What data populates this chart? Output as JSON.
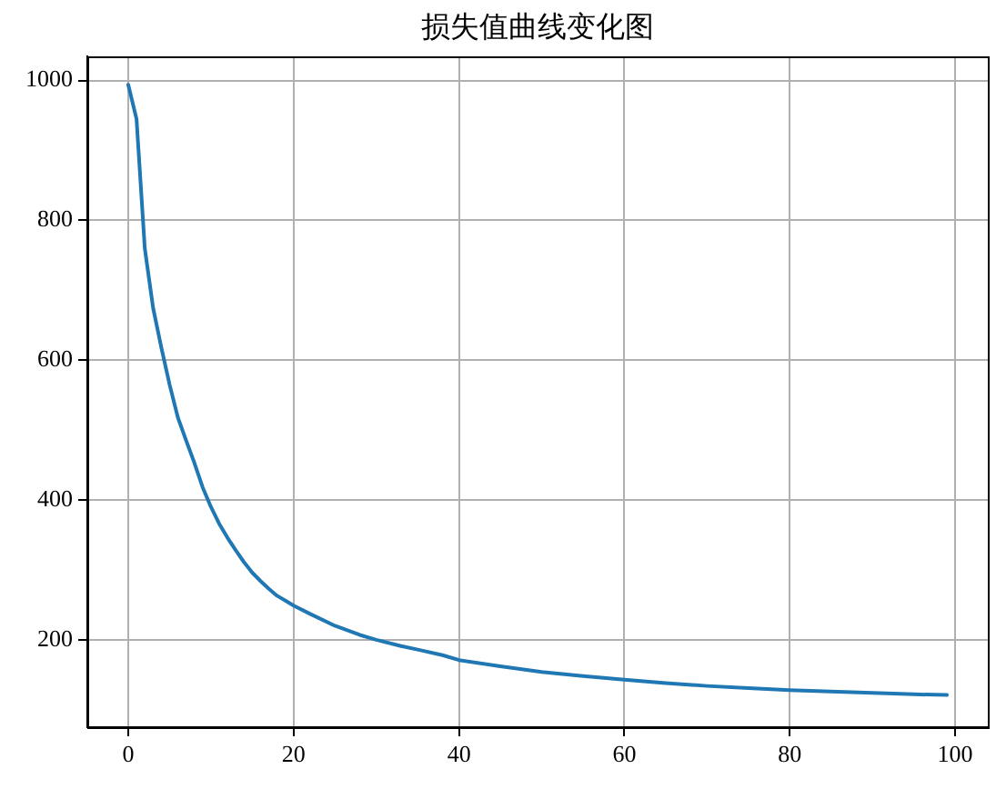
{
  "chart_data": {
    "type": "line",
    "title": "损失值曲线变化图",
    "x": [
      0,
      1,
      2,
      3,
      4,
      5,
      6,
      7,
      8,
      9,
      10,
      11,
      12,
      13,
      14,
      15,
      16,
      17,
      18,
      19,
      20,
      22,
      25,
      28,
      30,
      33,
      35,
      38,
      40,
      45,
      50,
      55,
      60,
      65,
      70,
      75,
      80,
      85,
      90,
      95,
      99
    ],
    "series": [
      {
        "color": "#1f77b4",
        "values": [
          994,
          945,
          760,
          675,
          618,
          565,
          518,
          485,
          453,
          418,
          390,
          366,
          346,
          328,
          311,
          296,
          284,
          273,
          263,
          256,
          249,
          237,
          220,
          207,
          200,
          191,
          186,
          178,
          171,
          162,
          154,
          148,
          143,
          138,
          134,
          131,
          128,
          126,
          124,
          122,
          121
        ]
      }
    ],
    "xlim": [
      -4.95,
      103.95
    ],
    "ylim": [
      75,
      1034
    ],
    "xticks": [
      0,
      20,
      40,
      60,
      80,
      100
    ],
    "yticks": [
      200,
      400,
      600,
      800,
      1000
    ],
    "grid": true
  }
}
